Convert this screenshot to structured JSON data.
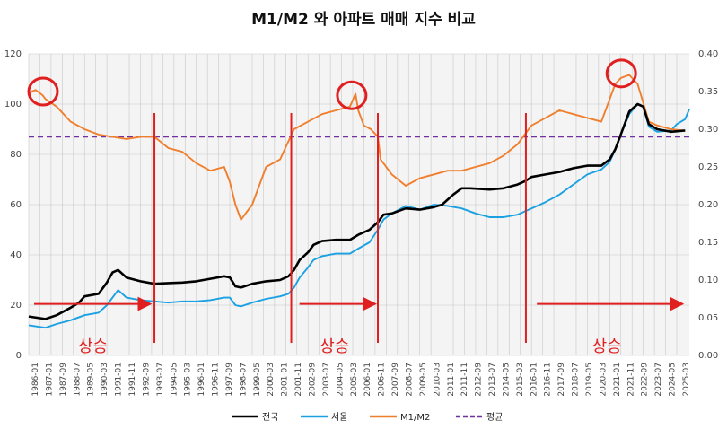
{
  "chart_data": {
    "type": "line",
    "title": "M1/M2 와 아파트 매매 지수 비교",
    "y_left": {
      "min": 0,
      "max": 120,
      "ticks": [
        "0",
        "20",
        "40",
        "60",
        "80",
        "100",
        "120"
      ]
    },
    "y_right": {
      "min": 0,
      "max": 0.4,
      "ticks": [
        "0.00",
        "0.05",
        "0.10",
        "0.15",
        "0.20",
        "0.25",
        "0.30",
        "0.35",
        "0.40"
      ]
    },
    "x_range": [
      "1986-01",
      "2025-06"
    ],
    "x_ticks": [
      "1986-01",
      "1986-09",
      "1987-05",
      "1988-01",
      "1988-09",
      "1989-05",
      "1990-01",
      "1990-09",
      "1991-05",
      "1992-01",
      "1992-09",
      "1993-05",
      "1994-01",
      "1994-09",
      "1995-05",
      "1996-01",
      "1996-09",
      "1997-05",
      "1998-01",
      "1998-09",
      "1999-05",
      "2000-01",
      "2000-09",
      "2001-05",
      "2002-01",
      "2002-09",
      "2003-05",
      "2004-01",
      "2004-09",
      "2005-05",
      "2006-01",
      "2006-09",
      "2007-05",
      "2008-01",
      "2008-09",
      "2009-05",
      "2010-01",
      "2010-09",
      "2011-05",
      "2012-01",
      "2012-09",
      "2013-05",
      "2014-01",
      "2014-09",
      "2015-05",
      "2016-01",
      "2016-09",
      "2017-05",
      "2018-01",
      "2018-09",
      "2019-05",
      "2020-01",
      "2020-09",
      "2021-05",
      "2022-01",
      "2022-09",
      "2023-05",
      "2024-01",
      "2024-09",
      "2025-05"
    ],
    "x_tick_labels": [
      "1986-01",
      "1987-01",
      "1987-09",
      "1988-07",
      "1989-05",
      "1990-03",
      "1991-01",
      "1991-11",
      "1992-09",
      "1993-07",
      "1994-05",
      "1995-03",
      "1996-01",
      "1996-11",
      "1997-09",
      "1998-07",
      "1999-05",
      "2000-03",
      "2001-01",
      "2001-11",
      "2002-09",
      "2003-07",
      "2004-05",
      "2005-03",
      "2006-01",
      "2006-11",
      "2007-09",
      "2008-07",
      "2009-05",
      "2010-03",
      "2011-01",
      "2011-11",
      "2012-09",
      "2013-07",
      "2014-05",
      "2015-03",
      "2016-01",
      "2016-11",
      "2017-09",
      "2018-07",
      "2019-05",
      "2020-03",
      "2021-01",
      "2021-11",
      "2022-09",
      "2023-07",
      "2024-05",
      "2025-03"
    ],
    "series": [
      {
        "name": "전국",
        "axis": "left",
        "color": "#000000",
        "points": [
          [
            "1986-01",
            15.5
          ],
          [
            "1987-01",
            14.5
          ],
          [
            "1987-09",
            16
          ],
          [
            "1988-07",
            19
          ],
          [
            "1989-01",
            21
          ],
          [
            "1989-05",
            23.5
          ],
          [
            "1990-03",
            24.5
          ],
          [
            "1990-09",
            29
          ],
          [
            "1991-01",
            33
          ],
          [
            "1991-05",
            34
          ],
          [
            "1991-11",
            31
          ],
          [
            "1992-09",
            29.5
          ],
          [
            "1993-07",
            28.5
          ],
          [
            "1994-05",
            28.8
          ],
          [
            "1995-03",
            29
          ],
          [
            "1996-01",
            29.5
          ],
          [
            "1996-11",
            30.5
          ],
          [
            "1997-09",
            31.5
          ],
          [
            "1998-01",
            31
          ],
          [
            "1998-05",
            27.5
          ],
          [
            "1998-09",
            27
          ],
          [
            "1999-05",
            28.5
          ],
          [
            "2000-03",
            29.5
          ],
          [
            "2001-01",
            30
          ],
          [
            "2001-07",
            31.5
          ],
          [
            "2001-11",
            34
          ],
          [
            "2002-03",
            38
          ],
          [
            "2002-09",
            41
          ],
          [
            "2003-01",
            44
          ],
          [
            "2003-07",
            45.5
          ],
          [
            "2004-05",
            46
          ],
          [
            "2005-03",
            46
          ],
          [
            "2005-09",
            48
          ],
          [
            "2006-05",
            50
          ],
          [
            "2006-11",
            53
          ],
          [
            "2007-03",
            56
          ],
          [
            "2007-09",
            56.5
          ],
          [
            "2008-07",
            58.5
          ],
          [
            "2009-05",
            58
          ],
          [
            "2010-03",
            59
          ],
          [
            "2010-09",
            60
          ],
          [
            "2011-05",
            64
          ],
          [
            "2011-11",
            66.5
          ],
          [
            "2012-05",
            66.5
          ],
          [
            "2013-07",
            66
          ],
          [
            "2014-05",
            66.5
          ],
          [
            "2015-03",
            68
          ],
          [
            "2015-09",
            69.5
          ],
          [
            "2016-01",
            71
          ],
          [
            "2016-11",
            72
          ],
          [
            "2017-09",
            73
          ],
          [
            "2018-07",
            74.5
          ],
          [
            "2019-05",
            75.5
          ],
          [
            "2020-03",
            75.5
          ],
          [
            "2020-09",
            78
          ],
          [
            "2021-01",
            82
          ],
          [
            "2021-05",
            88
          ],
          [
            "2021-11",
            97
          ],
          [
            "2022-05",
            100
          ],
          [
            "2022-09",
            99
          ],
          [
            "2023-01",
            92
          ],
          [
            "2023-07",
            90
          ],
          [
            "2024-05",
            89
          ],
          [
            "2025-03",
            89.5
          ]
        ]
      },
      {
        "name": "서울",
        "axis": "left",
        "color": "#1ba1e2",
        "points": [
          [
            "1986-01",
            12
          ],
          [
            "1987-01",
            11
          ],
          [
            "1987-09",
            12.5
          ],
          [
            "1988-07",
            14
          ],
          [
            "1989-05",
            16
          ],
          [
            "1990-03",
            17
          ],
          [
            "1990-09",
            20
          ],
          [
            "1991-05",
            26
          ],
          [
            "1991-11",
            23
          ],
          [
            "1992-09",
            22
          ],
          [
            "1993-07",
            21.5
          ],
          [
            "1994-05",
            21
          ],
          [
            "1995-03",
            21.5
          ],
          [
            "1996-01",
            21.5
          ],
          [
            "1996-11",
            22
          ],
          [
            "1997-09",
            23
          ],
          [
            "1998-01",
            23
          ],
          [
            "1998-05",
            20
          ],
          [
            "1998-09",
            19.5
          ],
          [
            "1999-05",
            21
          ],
          [
            "2000-03",
            22.5
          ],
          [
            "2001-01",
            23.5
          ],
          [
            "2001-07",
            24.5
          ],
          [
            "2001-11",
            27
          ],
          [
            "2002-03",
            31
          ],
          [
            "2002-09",
            35
          ],
          [
            "2003-01",
            38
          ],
          [
            "2003-07",
            39.5
          ],
          [
            "2004-05",
            40.5
          ],
          [
            "2005-03",
            40.5
          ],
          [
            "2005-09",
            42.5
          ],
          [
            "2006-05",
            45
          ],
          [
            "2006-11",
            50
          ],
          [
            "2007-03",
            54
          ],
          [
            "2007-09",
            56.5
          ],
          [
            "2008-07",
            59.5
          ],
          [
            "2009-05",
            58
          ],
          [
            "2010-03",
            60
          ],
          [
            "2011-01",
            59.5
          ],
          [
            "2011-11",
            58.5
          ],
          [
            "2012-09",
            56.5
          ],
          [
            "2013-07",
            55
          ],
          [
            "2014-05",
            55
          ],
          [
            "2015-03",
            56
          ],
          [
            "2015-09",
            57.5
          ],
          [
            "2016-01",
            58.5
          ],
          [
            "2016-11",
            61
          ],
          [
            "2017-09",
            64
          ],
          [
            "2018-07",
            68
          ],
          [
            "2019-05",
            72
          ],
          [
            "2020-03",
            74
          ],
          [
            "2020-09",
            77
          ],
          [
            "2021-01",
            82
          ],
          [
            "2021-05",
            88
          ],
          [
            "2021-11",
            96
          ],
          [
            "2022-05",
            100
          ],
          [
            "2022-09",
            99
          ],
          [
            "2023-01",
            91
          ],
          [
            "2023-07",
            89
          ],
          [
            "2024-05",
            89.5
          ],
          [
            "2024-09",
            92
          ],
          [
            "2025-03",
            94
          ],
          [
            "2025-06",
            98
          ]
        ]
      },
      {
        "name": "M1/M2",
        "axis": "right",
        "color": "#f07f2d",
        "points": [
          [
            "1986-01",
            0.345
          ],
          [
            "1986-03",
            0.35
          ],
          [
            "1986-06",
            0.352
          ],
          [
            "1986-11",
            0.345
          ],
          [
            "1987-01",
            0.34
          ],
          [
            "1987-09",
            0.33
          ],
          [
            "1988-07",
            0.31
          ],
          [
            "1989-05",
            0.3
          ],
          [
            "1990-03",
            0.293
          ],
          [
            "1991-01",
            0.29
          ],
          [
            "1991-11",
            0.287
          ],
          [
            "1992-09",
            0.29
          ],
          [
            "1993-07",
            0.29
          ],
          [
            "1994-05",
            0.275
          ],
          [
            "1995-03",
            0.27
          ],
          [
            "1996-01",
            0.255
          ],
          [
            "1996-11",
            0.245
          ],
          [
            "1997-09",
            0.25
          ],
          [
            "1998-01",
            0.23
          ],
          [
            "1998-05",
            0.2
          ],
          [
            "1998-09",
            0.18
          ],
          [
            "1999-05",
            0.2
          ],
          [
            "2000-03",
            0.25
          ],
          [
            "2001-01",
            0.26
          ],
          [
            "2001-11",
            0.3
          ],
          [
            "2002-09",
            0.31
          ],
          [
            "2003-07",
            0.32
          ],
          [
            "2004-05",
            0.325
          ],
          [
            "2005-03",
            0.33
          ],
          [
            "2005-07",
            0.347
          ],
          [
            "2005-09",
            0.325
          ],
          [
            "2006-01",
            0.305
          ],
          [
            "2006-06",
            0.3
          ],
          [
            "2006-11",
            0.29
          ],
          [
            "2007-01",
            0.26
          ],
          [
            "2007-09",
            0.24
          ],
          [
            "2008-07",
            0.225
          ],
          [
            "2009-05",
            0.235
          ],
          [
            "2010-03",
            0.24
          ],
          [
            "2011-01",
            0.245
          ],
          [
            "2011-11",
            0.245
          ],
          [
            "2012-09",
            0.25
          ],
          [
            "2013-07",
            0.255
          ],
          [
            "2014-05",
            0.265
          ],
          [
            "2015-03",
            0.28
          ],
          [
            "2015-09",
            0.295
          ],
          [
            "2016-01",
            0.305
          ],
          [
            "2016-11",
            0.315
          ],
          [
            "2017-09",
            0.325
          ],
          [
            "2018-07",
            0.32
          ],
          [
            "2019-05",
            0.315
          ],
          [
            "2020-03",
            0.31
          ],
          [
            "2020-09",
            0.34
          ],
          [
            "2021-01",
            0.36
          ],
          [
            "2021-05",
            0.368
          ],
          [
            "2021-11",
            0.372
          ],
          [
            "2022-05",
            0.36
          ],
          [
            "2022-09",
            0.335
          ],
          [
            "2023-01",
            0.31
          ],
          [
            "2023-07",
            0.305
          ],
          [
            "2024-05",
            0.3
          ],
          [
            "2025-03",
            0.298
          ]
        ]
      },
      {
        "name": "평균",
        "axis": "right",
        "color": "#7030a0",
        "dashed": true,
        "value": 0.29
      }
    ],
    "annotations": {
      "label": "상승",
      "vertical_lines": [
        "1993-07",
        "2001-09",
        "2006-11",
        "2015-09"
      ],
      "arrows": [
        [
          "1986-01",
          "1993-04",
          8
        ],
        [
          "2001-11",
          "2006-09",
          8
        ],
        [
          "2016-01",
          "2025-01",
          8
        ]
      ],
      "arrow_labels": [
        [
          "1989-11",
          "상승"
        ],
        [
          "2004-04",
          "상승"
        ],
        [
          "2020-07",
          "상승"
        ]
      ],
      "circles": [
        [
          "1986-10",
          0.35
        ],
        [
          "2005-03",
          0.345
        ],
        [
          "2021-04",
          0.374
        ]
      ],
      "color": "#e02020"
    },
    "legend": {
      "position": "bottom"
    },
    "grid": true
  }
}
